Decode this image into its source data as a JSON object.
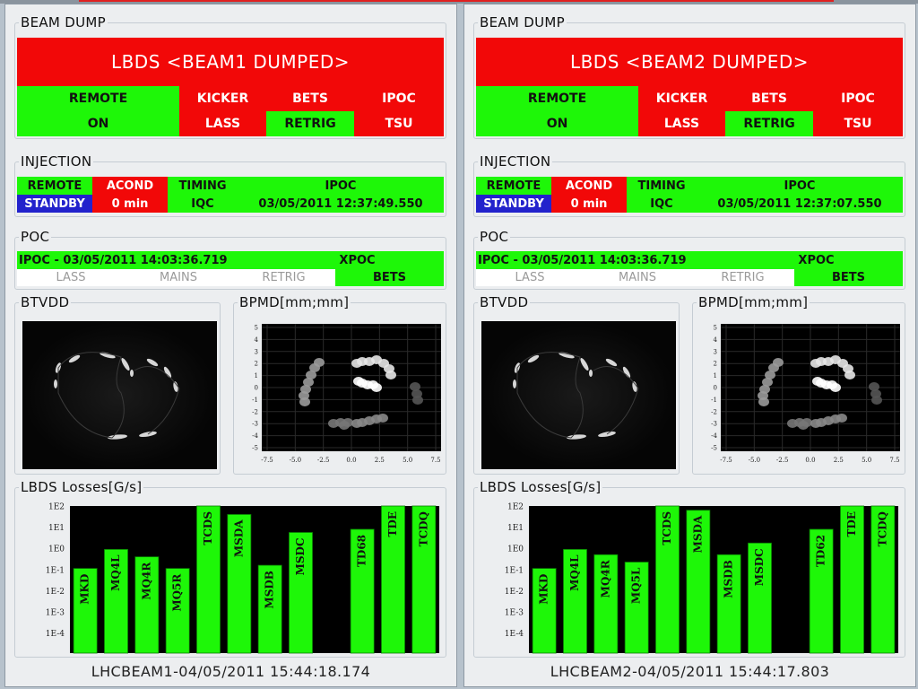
{
  "panels": [
    {
      "beam_dump": {
        "title": "BEAM DUMP",
        "status": "LBDS <BEAM1 DUMPED>",
        "remote_label": "REMOTE",
        "remote_value": "ON",
        "kicker_label": "KICKER",
        "kicker_value": "LASS",
        "bets_label": "BETS",
        "bets_value": "RETRIG",
        "ipoc_label": "IPOC",
        "ipoc_value": "TSU"
      },
      "injection": {
        "title": "INJECTION",
        "remote_label": "REMOTE",
        "remote_value": "STANDBY",
        "acond_label": "ACOND",
        "acond_value": "0 min",
        "timing_label": "TIMING",
        "timing_value": "IQC",
        "ipoc_label": "IPOC",
        "ipoc_value": "03/05/2011 12:37:49.550"
      },
      "poc": {
        "title": "POC",
        "ipoc_line": "IPOC - 03/05/2011 14:03:36.719",
        "xpoc_label": "XPOC",
        "lass": "LASS",
        "mains": "MAINS",
        "retrig": "RETRIG",
        "bets": "BETS"
      },
      "btvdd_title": "BTVDD",
      "bpmd": {
        "title": "BPMD[mm;mm]",
        "x_ticks": [
          "-7.5",
          "-5.0",
          "-2.5",
          "0.0",
          "2.5",
          "5.0",
          "7.5"
        ],
        "y_ticks": [
          "5",
          "4",
          "3",
          "2",
          "1",
          "0",
          "-1",
          "-2",
          "-3",
          "-4",
          "-5"
        ]
      },
      "losses": {
        "title": "LBDS Losses[G/s]",
        "y_ticks": [
          "1E2",
          "1E1",
          "1E0",
          "1E-1",
          "1E-2",
          "1E-3",
          "1E-4"
        ],
        "bars": [
          {
            "label": "MKD",
            "log": -0.95
          },
          {
            "label": "MQ4L",
            "log": -0.05
          },
          {
            "label": "MQ4R",
            "log": -0.4
          },
          {
            "label": "MQ5R",
            "log": -0.95
          },
          {
            "label": "TCDS",
            "log": 2
          },
          {
            "label": "MSDA",
            "log": 1.6
          },
          {
            "label": "MSDB",
            "log": -0.8
          },
          {
            "label": "MSDC",
            "log": 0.75
          },
          {
            "label": "",
            "log": null
          },
          {
            "label": "TD68",
            "log": 0.9
          },
          {
            "label": "TDE",
            "log": 2
          },
          {
            "label": "TCDQ",
            "log": 2
          }
        ]
      },
      "footer": "LHCBEAM1-04/05/2011 15:44:18.174"
    },
    {
      "beam_dump": {
        "title": "BEAM DUMP",
        "status": "LBDS <BEAM2 DUMPED>",
        "remote_label": "REMOTE",
        "remote_value": "ON",
        "kicker_label": "KICKER",
        "kicker_value": "LASS",
        "bets_label": "BETS",
        "bets_value": "RETRIG",
        "ipoc_label": "IPOC",
        "ipoc_value": "TSU"
      },
      "injection": {
        "title": "INJECTION",
        "remote_label": "REMOTE",
        "remote_value": "STANDBY",
        "acond_label": "ACOND",
        "acond_value": "0 min",
        "timing_label": "TIMING",
        "timing_value": "IQC",
        "ipoc_label": "IPOC",
        "ipoc_value": "03/05/2011 12:37:07.550"
      },
      "poc": {
        "title": "POC",
        "ipoc_line": "IPOC - 03/05/2011 14:03:36.719",
        "xpoc_label": "XPOC",
        "lass": "LASS",
        "mains": "MAINS",
        "retrig": "RETRIG",
        "bets": "BETS"
      },
      "btvdd_title": "BTVDD",
      "bpmd": {
        "title": "BPMD[mm;mm]",
        "x_ticks": [
          "-7.5",
          "-5.0",
          "-2.5",
          "0.0",
          "2.5",
          "5.0",
          "7.5"
        ],
        "y_ticks": [
          "5",
          "4",
          "3",
          "2",
          "1",
          "0",
          "-1",
          "-2",
          "-3",
          "-4",
          "-5"
        ]
      },
      "losses": {
        "title": "LBDS Losses[G/s]",
        "y_ticks": [
          "1E2",
          "1E1",
          "1E0",
          "1E-1",
          "1E-2",
          "1E-3",
          "1E-4"
        ],
        "bars": [
          {
            "label": "MKD",
            "log": -0.95
          },
          {
            "label": "MQ4L",
            "log": -0.05
          },
          {
            "label": "MQ4R",
            "log": -0.3
          },
          {
            "label": "MQ5L",
            "log": -0.65
          },
          {
            "label": "TCDS",
            "log": 2
          },
          {
            "label": "MSDA",
            "log": 1.8
          },
          {
            "label": "MSDB",
            "log": -0.3
          },
          {
            "label": "MSDC",
            "log": 0.25
          },
          {
            "label": "",
            "log": null
          },
          {
            "label": "TD62",
            "log": 0.9
          },
          {
            "label": "TDE",
            "log": 2
          },
          {
            "label": "TCDQ",
            "log": 2
          }
        ]
      },
      "footer": "LHCBEAM2-04/05/2011 15:44:17.803"
    }
  ]
}
